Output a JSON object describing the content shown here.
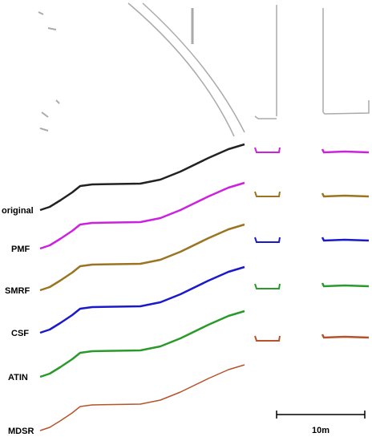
{
  "profiles": [
    {
      "label": "original",
      "color": "#222222"
    },
    {
      "label": "PMF",
      "color": "#cc22dd"
    },
    {
      "label": "SMRF",
      "color": "#9a7420"
    },
    {
      "label": "CSF",
      "color": "#1a1acc"
    },
    {
      "label": "ATIN",
      "color": "#2a9a2a"
    },
    {
      "label": "MDSR",
      "color": "#b5532a"
    }
  ],
  "scale_bar": "10m"
}
